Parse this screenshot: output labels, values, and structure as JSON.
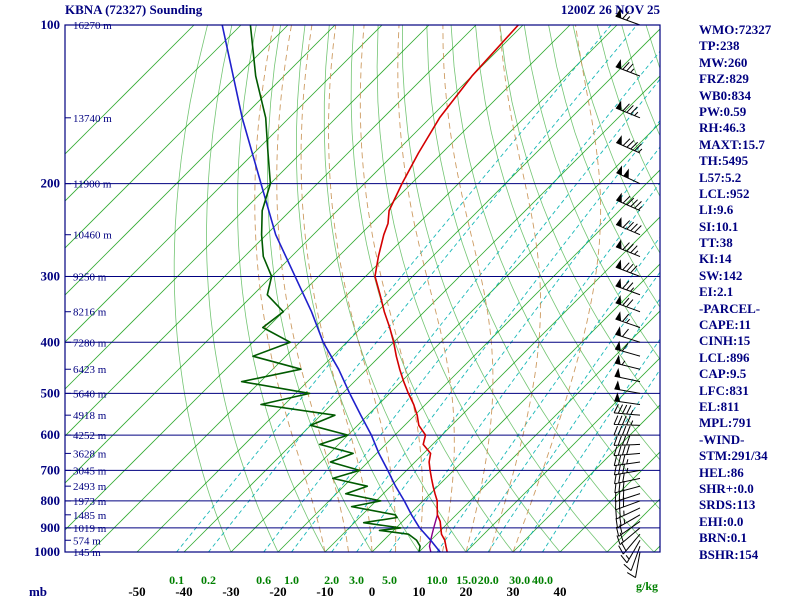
{
  "header": {
    "title": "KBNA (72327) Sounding",
    "datetime": "1200Z 26 NOV 25"
  },
  "colors": {
    "navy": "#000080",
    "grid_green": "#009600",
    "mixing_cyan": "#00b0b0",
    "moist_tan": "#c89050",
    "temperature_red": "#d40000",
    "dewpoint_green": "#005a00",
    "parcel_blue": "#2020cc",
    "wetbulb_purple": "#880088",
    "barb_black": "#000000",
    "label_green": "#008000"
  },
  "stats_panel": [
    "WMO:72327",
    "TP:238",
    "MW:260",
    "FRZ:829",
    "WB0:834",
    "PW:0.59",
    "RH:46.3",
    "MAXT:15.7",
    "TH:5495",
    "L57:5.2",
    "LCL:952",
    "LI:9.6",
    "SI:10.1",
    "TT:38",
    "KI:14",
    "SW:142",
    "EI:2.1",
    "-PARCEL-",
    "CAPE:11",
    "CINH:15",
    "LCL:896",
    "CAP:9.5",
    "LFC:831",
    "EL:811",
    "MPL:791",
    "-WIND-",
    "STM:291/34",
    "HEL:86",
    "SHR+:0.0",
    "SRDS:113",
    "EHI:0.0",
    "BRN:0.1",
    "BSHR:154"
  ],
  "chart_data": {
    "type": "skewt_log_p_sounding",
    "title": "KBNA (72327) Sounding",
    "station": "KBNA (72327)",
    "valid": "1200Z 26 NOV 25",
    "y_axis": {
      "unit": "mb",
      "scale": "log",
      "range": [
        100,
        1000
      ],
      "isobar_labels": [
        100,
        200,
        300,
        400,
        500,
        600,
        700,
        800,
        900,
        1000
      ]
    },
    "x_axis": {
      "unit_left": "mb",
      "temp_labels_c": [
        -50,
        -40,
        -30,
        -20,
        -10,
        0,
        10,
        20,
        30,
        40
      ],
      "mixing_ratio_labels_gkg": [
        "0.1",
        "0.2",
        "0.6",
        "1.0",
        "2.0",
        "3.0",
        "5.0",
        "10.0",
        "15.0",
        "20.0",
        "30.0",
        "40.0"
      ],
      "unit_right": "g/kg"
    },
    "height_labels": [
      {
        "p": 100,
        "label": "16270 m"
      },
      {
        "p": 150,
        "label": "13740 m"
      },
      {
        "p": 200,
        "label": "11900 m"
      },
      {
        "p": 250,
        "label": "10460 m"
      },
      {
        "p": 300,
        "label": "9250 m"
      },
      {
        "p": 350,
        "label": "8216 m"
      },
      {
        "p": 400,
        "label": "7280 m"
      },
      {
        "p": 450,
        "label": "6423 m"
      },
      {
        "p": 500,
        "label": "5640 m"
      },
      {
        "p": 550,
        "label": "4918 m"
      },
      {
        "p": 600,
        "label": "4252 m"
      },
      {
        "p": 650,
        "label": "3628 m"
      },
      {
        "p": 700,
        "label": "3045 m"
      },
      {
        "p": 750,
        "label": "2493 m"
      },
      {
        "p": 800,
        "label": "1973 m"
      },
      {
        "p": 850,
        "label": "1485 m"
      },
      {
        "p": 900,
        "label": "1019 m"
      },
      {
        "p": 950,
        "label": "574 m"
      },
      {
        "p": 1000,
        "label": "145 m"
      }
    ],
    "grid": {
      "isotherms_c": {
        "min": -150,
        "max": 60,
        "step": 10
      },
      "dry_adiabats_theta_c": {
        "min": -30,
        "max": 160,
        "step": 10
      },
      "moist_adiabats_thetaw_c": [
        -10,
        -5,
        0,
        5,
        10,
        15,
        20,
        25,
        30
      ]
    },
    "temperature_profile_p_t": [
      [
        1000,
        16
      ],
      [
        975,
        14.5
      ],
      [
        950,
        13
      ],
      [
        925,
        11
      ],
      [
        900,
        9.5
      ],
      [
        875,
        8
      ],
      [
        850,
        6
      ],
      [
        825,
        4.5
      ],
      [
        800,
        3
      ],
      [
        775,
        1
      ],
      [
        750,
        -1
      ],
      [
        725,
        -3
      ],
      [
        700,
        -5
      ],
      [
        675,
        -7
      ],
      [
        650,
        -8.5
      ],
      [
        625,
        -12
      ],
      [
        600,
        -13.5
      ],
      [
        575,
        -17
      ],
      [
        550,
        -19.5
      ],
      [
        525,
        -22.5
      ],
      [
        500,
        -26
      ],
      [
        475,
        -29.5
      ],
      [
        450,
        -33
      ],
      [
        425,
        -36.5
      ],
      [
        400,
        -40
      ],
      [
        375,
        -44
      ],
      [
        350,
        -48.5
      ],
      [
        325,
        -53
      ],
      [
        300,
        -58
      ],
      [
        275,
        -61.5
      ],
      [
        250,
        -65
      ],
      [
        238,
        -66.5
      ],
      [
        225,
        -69
      ],
      [
        200,
        -72
      ],
      [
        175,
        -75
      ],
      [
        150,
        -78
      ],
      [
        125,
        -80
      ],
      [
        100,
        -81
      ]
    ],
    "dewpoint_profile_p_t": [
      [
        1000,
        10
      ],
      [
        975,
        9
      ],
      [
        950,
        7
      ],
      [
        925,
        4
      ],
      [
        910,
        -3
      ],
      [
        900,
        1
      ],
      [
        880,
        -8
      ],
      [
        860,
        -2
      ],
      [
        850,
        -3
      ],
      [
        820,
        -14
      ],
      [
        800,
        -9
      ],
      [
        775,
        -18
      ],
      [
        750,
        -15
      ],
      [
        725,
        -24
      ],
      [
        700,
        -20
      ],
      [
        675,
        -28
      ],
      [
        650,
        -25
      ],
      [
        625,
        -34
      ],
      [
        600,
        -30
      ],
      [
        575,
        -40
      ],
      [
        550,
        -37
      ],
      [
        525,
        -55
      ],
      [
        500,
        -47
      ],
      [
        475,
        -64
      ],
      [
        450,
        -54
      ],
      [
        425,
        -67
      ],
      [
        400,
        -62
      ],
      [
        375,
        -71
      ],
      [
        350,
        -70
      ],
      [
        325,
        -77
      ],
      [
        300,
        -80
      ],
      [
        275,
        -86
      ],
      [
        250,
        -91
      ],
      [
        225,
        -96
      ],
      [
        200,
        -100
      ],
      [
        175,
        -107
      ],
      [
        150,
        -115
      ],
      [
        125,
        -126
      ],
      [
        100,
        -138
      ]
    ],
    "parcel_trace_p_t": [
      [
        1000,
        14.5
      ],
      [
        950,
        10
      ],
      [
        900,
        5
      ],
      [
        850,
        0.5
      ],
      [
        800,
        -4
      ],
      [
        750,
        -9
      ],
      [
        700,
        -14
      ],
      [
        650,
        -19.5
      ],
      [
        600,
        -25
      ],
      [
        550,
        -31.5
      ],
      [
        500,
        -38.5
      ],
      [
        450,
        -46
      ],
      [
        400,
        -55
      ],
      [
        350,
        -64
      ],
      [
        300,
        -75
      ],
      [
        250,
        -88
      ],
      [
        200,
        -102
      ],
      [
        150,
        -120
      ],
      [
        100,
        -144
      ]
    ],
    "wetbulb_trace_p_t": [
      [
        1000,
        12.5
      ],
      [
        975,
        11
      ],
      [
        950,
        10
      ],
      [
        925,
        9
      ],
      [
        900,
        8
      ],
      [
        875,
        7
      ],
      [
        850,
        6
      ]
    ],
    "winds_p_dir_kt": [
      [
        1000,
        190,
        10
      ],
      [
        975,
        200,
        12
      ],
      [
        950,
        210,
        15
      ],
      [
        925,
        220,
        18
      ],
      [
        900,
        230,
        20
      ],
      [
        875,
        235,
        22
      ],
      [
        850,
        240,
        25
      ],
      [
        825,
        245,
        26
      ],
      [
        800,
        250,
        28
      ],
      [
        775,
        252,
        30
      ],
      [
        750,
        255,
        30
      ],
      [
        725,
        258,
        32
      ],
      [
        700,
        260,
        35
      ],
      [
        675,
        262,
        36
      ],
      [
        650,
        265,
        38
      ],
      [
        625,
        268,
        40
      ],
      [
        600,
        270,
        42
      ],
      [
        575,
        272,
        44
      ],
      [
        550,
        275,
        45
      ],
      [
        525,
        278,
        48
      ],
      [
        500,
        280,
        50
      ],
      [
        475,
        282,
        52
      ],
      [
        450,
        284,
        55
      ],
      [
        425,
        286,
        58
      ],
      [
        400,
        288,
        60
      ],
      [
        375,
        289,
        65
      ],
      [
        350,
        290,
        70
      ],
      [
        325,
        290,
        75
      ],
      [
        300,
        291,
        80
      ],
      [
        275,
        292,
        85
      ],
      [
        250,
        293,
        90
      ],
      [
        225,
        294,
        95
      ],
      [
        200,
        295,
        100
      ],
      [
        175,
        294,
        95
      ],
      [
        150,
        292,
        85
      ],
      [
        125,
        291,
        75
      ],
      [
        100,
        290,
        65
      ]
    ]
  }
}
